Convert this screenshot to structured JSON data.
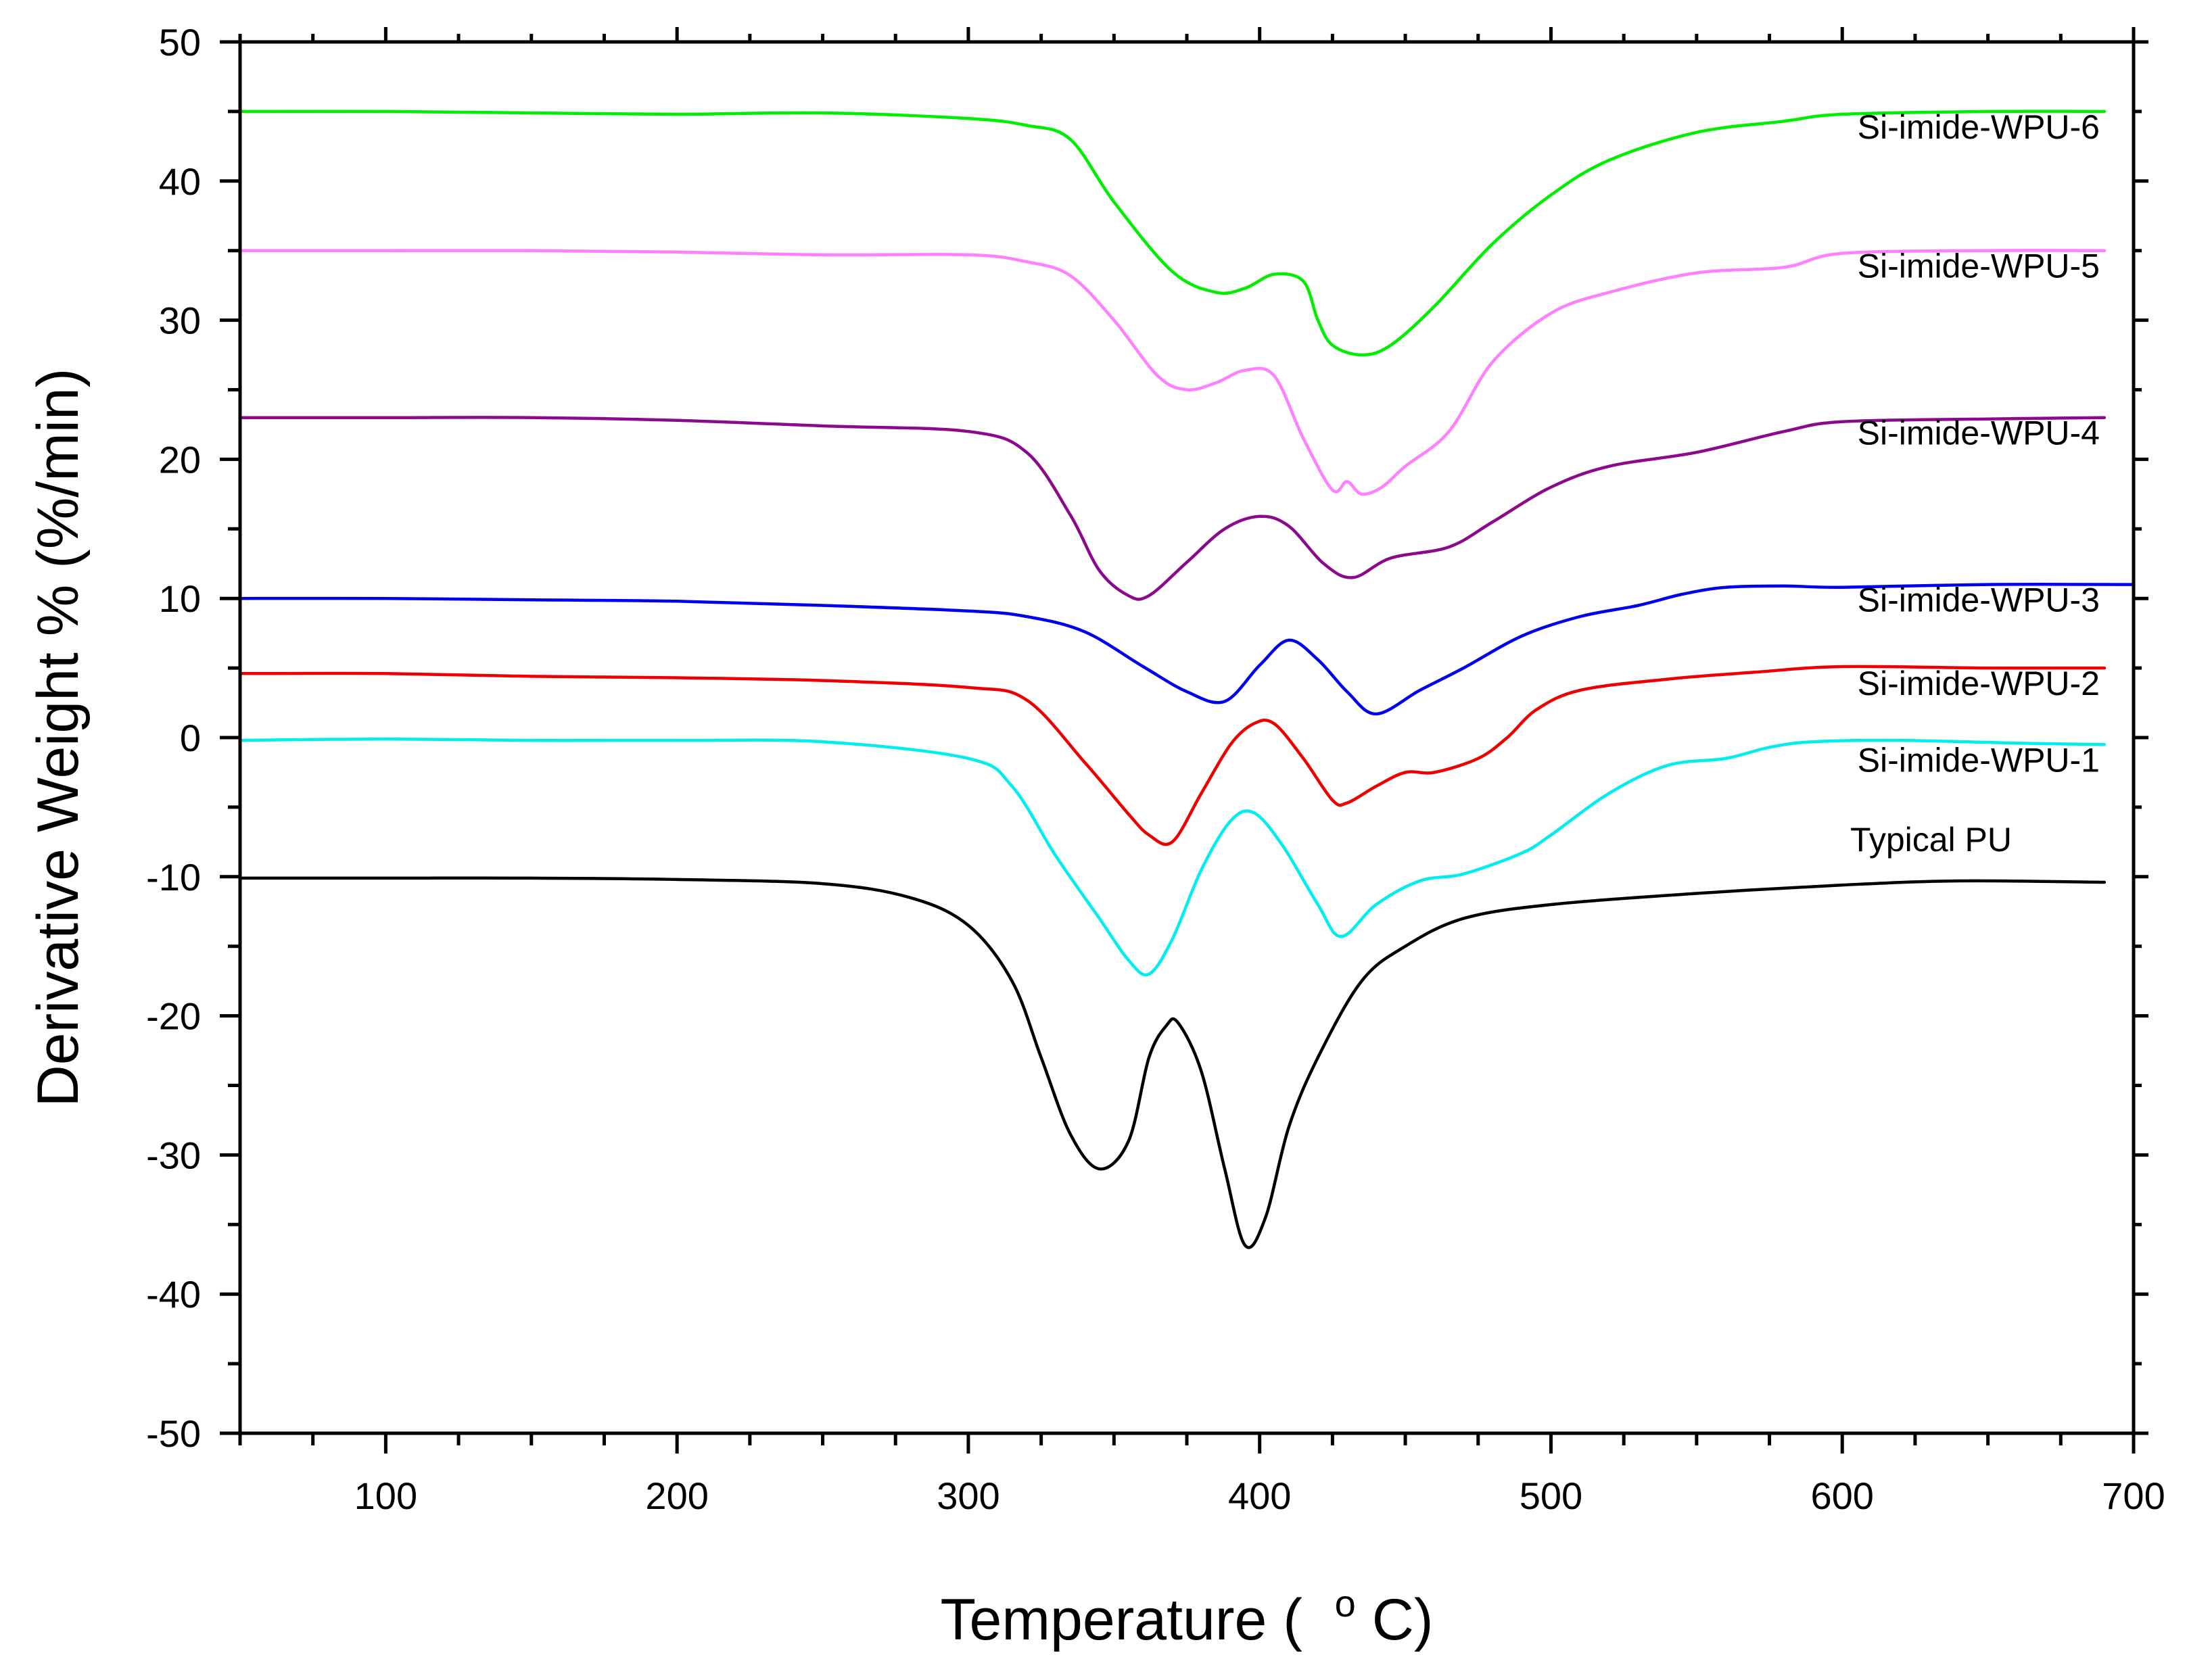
{
  "chart_data": {
    "type": "line",
    "title": "",
    "xlabel": "Temperature",
    "xlabel_unit_prefix": "( ",
    "xlabel_unit_sup": "o",
    "xlabel_unit": "C)",
    "ylabel": "Derivative Weight % (%/min)",
    "xlim": [
      50,
      700
    ],
    "ylim": [
      -50,
      50
    ],
    "xticks": [
      100,
      200,
      300,
      400,
      500,
      600,
      700
    ],
    "yticks": [
      -50,
      -40,
      -30,
      -20,
      -10,
      0,
      10,
      20,
      30,
      40,
      50
    ],
    "grid": false,
    "series": [
      {
        "name": "Si-imide-WPU-6",
        "color": "#00ee00",
        "x": [
          50,
          100,
          150,
          200,
          250,
          300,
          320,
          335,
          350,
          370,
          385,
          395,
          405,
          415,
          420,
          425,
          435,
          445,
          460,
          480,
          500,
          520,
          550,
          580,
          600,
          650,
          690
        ],
        "y": [
          45,
          45,
          44.9,
          44.8,
          44.9,
          44.5,
          44,
          43,
          38.5,
          33.5,
          32,
          32.3,
          33.3,
          32.8,
          30,
          28.2,
          27.5,
          28.2,
          31,
          35.5,
          39,
          41.5,
          43.5,
          44.3,
          44.8,
          45,
          45
        ]
      },
      {
        "name": "Si-imide-WPU-5",
        "color": "#ff80ff",
        "x": [
          50,
          100,
          150,
          200,
          250,
          300,
          320,
          335,
          350,
          365,
          375,
          385,
          395,
          405,
          415,
          425,
          430,
          435,
          442,
          450,
          465,
          480,
          500,
          520,
          550,
          580,
          600,
          650,
          690
        ],
        "y": [
          35,
          35,
          35,
          34.9,
          34.7,
          34.7,
          34.2,
          33.2,
          30,
          26,
          25,
          25.5,
          26.4,
          26,
          21.5,
          17.8,
          18.4,
          17.5,
          18,
          19.5,
          22,
          27,
          30.5,
          32,
          33.4,
          33.8,
          34.8,
          35,
          35
        ]
      },
      {
        "name": "Si-imide-WPU-4",
        "color": "#8b0a8b",
        "x": [
          50,
          100,
          150,
          200,
          250,
          300,
          320,
          335,
          345,
          355,
          362,
          375,
          388,
          400,
          410,
          422,
          432,
          445,
          465,
          480,
          500,
          520,
          550,
          580,
          600,
          650,
          690
        ],
        "y": [
          23,
          23,
          23,
          22.8,
          22.4,
          22,
          20.5,
          16,
          12,
          10.2,
          10.2,
          12.6,
          15,
          15.9,
          15.2,
          12.5,
          11.5,
          12.9,
          13.7,
          15.5,
          18,
          19.5,
          20.5,
          22,
          22.7,
          22.9,
          23
        ]
      },
      {
        "name": "Si-imide-WPU-3",
        "color": "#0000ee",
        "x": [
          50,
          100,
          150,
          200,
          250,
          300,
          320,
          340,
          360,
          375,
          388,
          400,
          410,
          420,
          430,
          440,
          455,
          470,
          490,
          510,
          530,
          545,
          560,
          580,
          600,
          650,
          700
        ],
        "y": [
          10,
          10,
          9.9,
          9.8,
          9.5,
          9.1,
          8.7,
          7.6,
          5.1,
          3.3,
          2.6,
          5.2,
          7,
          5.6,
          3.3,
          1.7,
          3.4,
          5,
          7.3,
          8.7,
          9.5,
          10.3,
          10.8,
          10.9,
          10.8,
          11,
          11
        ]
      },
      {
        "name": "Si-imide-WPU-2",
        "color": "#ee0000",
        "x": [
          50,
          100,
          150,
          200,
          250,
          300,
          320,
          340,
          355,
          362,
          370,
          380,
          390,
          398,
          405,
          415,
          425,
          430,
          440,
          450,
          460,
          475,
          485,
          495,
          510,
          540,
          570,
          600,
          650,
          690
        ],
        "y": [
          4.6,
          4.6,
          4.4,
          4.3,
          4.1,
          3.6,
          2.7,
          -1.8,
          -5.5,
          -7,
          -7.5,
          -4,
          -0.5,
          1,
          1,
          -1.5,
          -4.5,
          -4.7,
          -3.5,
          -2.5,
          -2.5,
          -1.5,
          0,
          2,
          3.4,
          4.2,
          4.7,
          5.1,
          5,
          5
        ]
      },
      {
        "name": "Si-imide-WPU-1",
        "color": "#00eeee",
        "x": [
          50,
          100,
          150,
          200,
          250,
          300,
          315,
          330,
          345,
          355,
          362,
          370,
          380,
          390,
          398,
          408,
          420,
          428,
          440,
          455,
          470,
          490,
          500,
          520,
          540,
          560,
          575,
          590,
          620,
          660,
          690
        ],
        "y": [
          -0.2,
          -0.1,
          -0.2,
          -0.2,
          -0.3,
          -1.5,
          -3.5,
          -8.5,
          -13,
          -16,
          -17,
          -14.5,
          -9.5,
          -6,
          -5.4,
          -7.8,
          -12,
          -14.3,
          -12,
          -10.3,
          -9.8,
          -8.3,
          -7,
          -4,
          -2,
          -1.5,
          -0.7,
          -0.3,
          -0.2,
          -0.4,
          -0.5
        ]
      },
      {
        "name": "Typical PU",
        "color": "#000000",
        "x": [
          50,
          100,
          150,
          200,
          250,
          280,
          300,
          315,
          325,
          335,
          345,
          355,
          362,
          368,
          372,
          380,
          388,
          395,
          402,
          410,
          420,
          435,
          450,
          470,
          500,
          550,
          600,
          640,
          690
        ],
        "y": [
          -10.1,
          -10.1,
          -10.1,
          -10.2,
          -10.5,
          -11.5,
          -13.5,
          -17.5,
          -23,
          -28.5,
          -31,
          -29,
          -23,
          -20.7,
          -20.5,
          -24,
          -31,
          -36.5,
          -34.5,
          -28,
          -23,
          -17.5,
          -15,
          -13,
          -12,
          -11.2,
          -10.6,
          -10.3,
          -10.4
        ]
      }
    ],
    "labels": [
      {
        "text": "Si-imide-WPU-6",
        "series": "Si-imide-WPU-6"
      },
      {
        "text": "Si-imide-WPU-5",
        "series": "Si-imide-WPU-5"
      },
      {
        "text": "Si-imide-WPU-4",
        "series": "Si-imide-WPU-4"
      },
      {
        "text": "Si-imide-WPU-3",
        "series": "Si-imide-WPU-3"
      },
      {
        "text": "Si-imide-WPU-2",
        "series": "Si-imide-WPU-2"
      },
      {
        "text": "Si-imide-WPU-1",
        "series": "Si-imide-WPU-1"
      },
      {
        "text": "Typical PU",
        "series": "Typical PU"
      }
    ]
  }
}
